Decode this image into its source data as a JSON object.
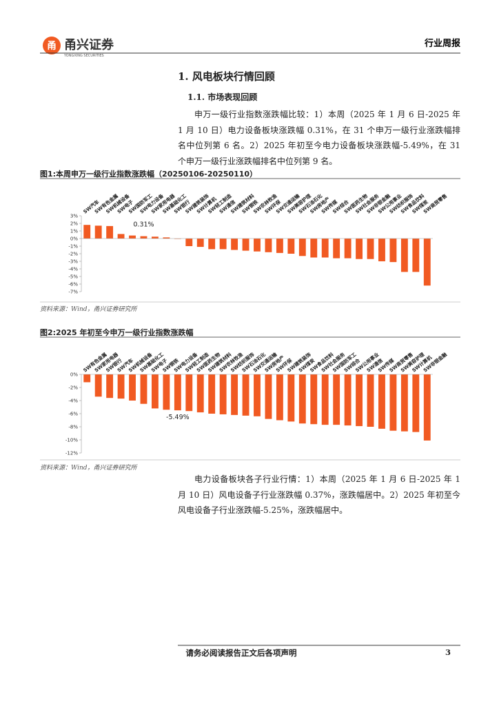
{
  "header": {
    "logo_cn": "甬兴证券",
    "logo_en": "YONGXING SECURITIES",
    "report_type": "行业周报"
  },
  "section": {
    "heading": "1. 风电板块行情回顾",
    "subheading": "1.1. 市场表现回顾"
  },
  "paragraphs": [
    "申万一级行业指数涨跌幅比较：1）本周（2025 年 1 月 6 日-2025 年 1 月 10 日）电力设备板块涨跌幅 0.31%，在 31 个申万一级行业涨跌幅排名中位列第 6 名。2）2025 年初至今电力设备板块涨跌幅-5.49%，在 31 个申万一级行业涨跌幅排名中位列第 9 名。",
    "电力设备板块各子行业行情：1）本周（2025 年 1 月 6 日-2025 年 1 月 10 日）风电设备子行业涨跌幅 0.37%，涨跌幅居中。2）2025 年初至今风电设备子行业涨跌幅-5.25%，涨跌幅居中。"
  ],
  "chart_data": [
    {
      "type": "bar",
      "title": "图1:本周申万一级行业指数涨跌幅（20250106-20250110）",
      "source": "资料来源：Wind，甬兴证券研究所",
      "color": "#f15a22",
      "categories": [
        "SW汽车",
        "SW有色金属",
        "SW机械设备",
        "SW电子",
        "SW国防军工",
        "SW电力设备",
        "SW家用电器",
        "SW基础化工",
        "SW银行",
        "SW建筑装饰",
        "SW计算机",
        "SW轻工制造",
        "SW通信",
        "SW建筑材料",
        "SW钢铁",
        "SW农林牧渔",
        "SW环保",
        "SW交通运输",
        "SW美容护理",
        "SW石油石化",
        "SW房地产",
        "SW传媒",
        "SW综合",
        "SW医药生物",
        "SW社会服务",
        "SW非银金融",
        "SW公用事业",
        "SW纺织服饰",
        "SW食品饮料",
        "SW煤炭",
        "SW商贸零售"
      ],
      "values": [
        1.8,
        1.7,
        1.65,
        0.6,
        0.4,
        0.31,
        0.25,
        0.15,
        -0.05,
        -1.0,
        -1.1,
        -1.4,
        -1.4,
        -1.5,
        -1.6,
        -1.7,
        -1.8,
        -1.9,
        -2.0,
        -2.3,
        -2.5,
        -2.5,
        -2.6,
        -2.6,
        -2.7,
        -2.7,
        -3.0,
        -3.1,
        -4.4,
        -4.4,
        -6.2
      ],
      "value_labels": [
        null,
        null,
        null,
        null,
        null,
        "0.31%",
        null,
        null,
        null,
        null,
        null,
        null,
        null,
        null,
        null,
        null,
        null,
        null,
        null,
        null,
        null,
        null,
        null,
        null,
        null,
        null,
        null,
        null,
        null,
        null,
        null
      ],
      "ylim": [
        -7,
        3
      ],
      "yticks": [
        {
          "value": 3,
          "label": "3%"
        },
        {
          "value": 2,
          "label": "2%"
        },
        {
          "value": 1,
          "label": "1%"
        },
        {
          "value": 0,
          "label": "0%"
        },
        {
          "value": -1,
          "label": "-1%"
        },
        {
          "value": -2,
          "label": "-2%"
        },
        {
          "value": -3,
          "label": "-3%"
        },
        {
          "value": -4,
          "label": "-4%"
        },
        {
          "value": -5,
          "label": "-5%"
        },
        {
          "value": -6,
          "label": "-6%"
        },
        {
          "value": -7,
          "label": "-7%"
        }
      ]
    },
    {
      "type": "bar",
      "title": "图2:2025 年初至今申万一级行业指数涨跌幅",
      "source": "资料来源：Wind，甬兴证券研究所",
      "color": "#f15a22",
      "categories": [
        "SW有色金属",
        "SW家用电器",
        "SW银行",
        "SW汽车",
        "SW机械设备",
        "SW基础化工",
        "SW电子",
        "SW钢铁",
        "SW电力设备",
        "SW轻工制造",
        "SW医药生物",
        "SW建筑材料",
        "SW农林牧渔",
        "SW纺织服饰",
        "SW石油石化",
        "SW交通运输",
        "SW房地产",
        "SW环保",
        "SW建筑装饰",
        "SW煤炭",
        "SW食品饮料",
        "SW社会服务",
        "SW国防军工",
        "SW综合",
        "SW公用事业",
        "SW通信",
        "SW传媒",
        "SW商贸零售",
        "SW美容护理",
        "SW计算机",
        "SW非银金融"
      ],
      "values": [
        -1.2,
        -3.4,
        -3.6,
        -3.7,
        -4.0,
        -4.5,
        -5.2,
        -5.4,
        -5.49,
        -5.6,
        -5.8,
        -6.0,
        -6.1,
        -6.2,
        -6.3,
        -6.4,
        -6.8,
        -7.0,
        -7.2,
        -7.5,
        -7.6,
        -7.7,
        -7.7,
        -7.8,
        -7.9,
        -8.0,
        -8.3,
        -8.6,
        -8.7,
        -8.8,
        -10.1
      ],
      "value_labels": [
        null,
        null,
        null,
        null,
        null,
        null,
        null,
        null,
        "-5.49%",
        null,
        null,
        null,
        null,
        null,
        null,
        null,
        null,
        null,
        null,
        null,
        null,
        null,
        null,
        null,
        null,
        null,
        null,
        null,
        null,
        null,
        null
      ],
      "ylim": [
        -12,
        0
      ],
      "yticks": [
        {
          "value": 0,
          "label": "0%"
        },
        {
          "value": -2,
          "label": "-2%"
        },
        {
          "value": -4,
          "label": "-4%"
        },
        {
          "value": -6,
          "label": "-6%"
        },
        {
          "value": -8,
          "label": "-8%"
        },
        {
          "value": -10,
          "label": "-10%"
        },
        {
          "value": -12,
          "label": "-12%"
        }
      ]
    }
  ],
  "footer": {
    "disclaimer": "请务必阅读报告正文后各项声明",
    "page_number": "3"
  }
}
